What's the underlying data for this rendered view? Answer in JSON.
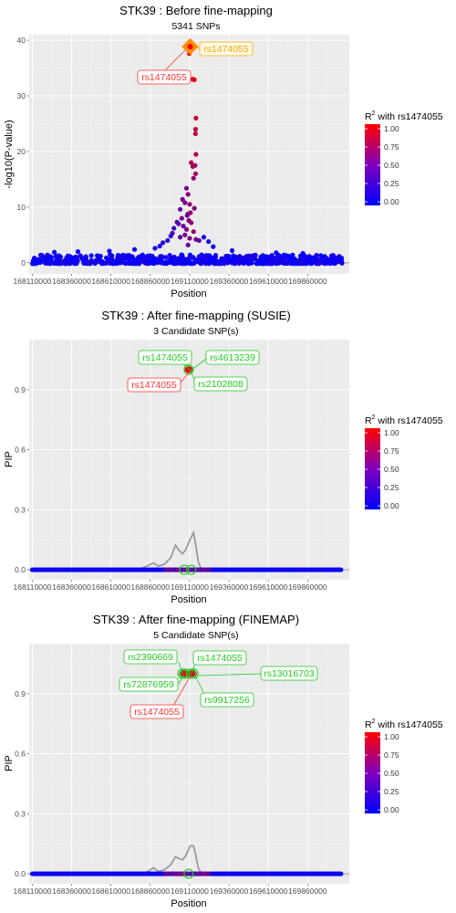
{
  "colors": {
    "low": "#0000ff",
    "high": "#ff0000",
    "panel": "#ebebeb",
    "candidate": "#22cc22",
    "lead": "#ff3333",
    "lead_label": "#ffaa00"
  },
  "chart_data": [
    {
      "type": "scatter",
      "title": "STK39 : Before fine-mapping",
      "subtitle": "5341 SNPs",
      "xlabel": "Position",
      "ylabel": "-log10(P-value)",
      "x_ticks": [
        "168110000",
        "168360000",
        "168610000",
        "168860000",
        "169110000",
        "169360000",
        "169610000",
        "169860000"
      ],
      "y_ticks": [
        "0",
        "10",
        "20",
        "30",
        "40"
      ],
      "ylim": [
        -2,
        41
      ],
      "xlim": [
        168090000,
        170125000
      ],
      "legend": {
        "title": "R² with rs1474055",
        "ticks": [
          "0.00",
          "0.25",
          "0.50",
          "0.75",
          "1.00"
        ]
      },
      "lead_snp": {
        "name": "rs1474055",
        "x": 169100000,
        "y": 38.5
      },
      "labels": [
        {
          "text": "rs1474055",
          "color": "lead_label"
        },
        {
          "text": "rs1474055",
          "color": "lead"
        }
      ],
      "peak_points": [
        {
          "x": 169095000,
          "y": 38.5,
          "r2": 1.0
        },
        {
          "x": 169108000,
          "y": 37.6,
          "r2": 0.95
        },
        {
          "x": 169130000,
          "y": 33.0,
          "r2": 0.9
        },
        {
          "x": 169140000,
          "y": 32.9,
          "r2": 0.9
        },
        {
          "x": 169150000,
          "y": 26.0,
          "r2": 0.78
        },
        {
          "x": 169148000,
          "y": 24.0,
          "r2": 0.75
        },
        {
          "x": 169147000,
          "y": 23.2,
          "r2": 0.72
        },
        {
          "x": 169150000,
          "y": 19.5,
          "r2": 0.7
        },
        {
          "x": 169148000,
          "y": 16.0,
          "r2": 0.65
        },
        {
          "x": 169120000,
          "y": 18.0,
          "r2": 0.7
        },
        {
          "x": 169130000,
          "y": 17.3,
          "r2": 0.68
        },
        {
          "x": 169145000,
          "y": 17.5,
          "r2": 0.6
        },
        {
          "x": 169135000,
          "y": 15.2,
          "r2": 0.55
        },
        {
          "x": 169090000,
          "y": 13.4,
          "r2": 0.45
        },
        {
          "x": 169100000,
          "y": 12.3,
          "r2": 0.5
        },
        {
          "x": 169065000,
          "y": 11.4,
          "r2": 0.45
        },
        {
          "x": 169080000,
          "y": 10.8,
          "r2": 0.5
        },
        {
          "x": 169110000,
          "y": 10.5,
          "r2": 0.55
        },
        {
          "x": 169140000,
          "y": 9.8,
          "r2": 0.5
        },
        {
          "x": 169050000,
          "y": 9.6,
          "r2": 0.4
        },
        {
          "x": 169115000,
          "y": 9.0,
          "r2": 0.6
        },
        {
          "x": 169100000,
          "y": 8.8,
          "r2": 0.55
        },
        {
          "x": 169095000,
          "y": 8.5,
          "r2": 0.4
        },
        {
          "x": 169060000,
          "y": 8.0,
          "r2": 0.45
        },
        {
          "x": 169105000,
          "y": 7.6,
          "r2": 0.5
        },
        {
          "x": 169120000,
          "y": 7.2,
          "r2": 0.55
        },
        {
          "x": 169030000,
          "y": 7.3,
          "r2": 0.3
        },
        {
          "x": 169040000,
          "y": 7.0,
          "r2": 0.35
        },
        {
          "x": 169070000,
          "y": 6.6,
          "r2": 0.4
        },
        {
          "x": 169010000,
          "y": 6.2,
          "r2": 0.25
        },
        {
          "x": 169090000,
          "y": 6.0,
          "r2": 0.5
        },
        {
          "x": 169135000,
          "y": 5.6,
          "r2": 0.55
        },
        {
          "x": 169000000,
          "y": 5.3,
          "r2": 0.3
        },
        {
          "x": 169080000,
          "y": 5.0,
          "r2": 0.45
        },
        {
          "x": 168990000,
          "y": 4.8,
          "r2": 0.2
        },
        {
          "x": 169050000,
          "y": 4.6,
          "r2": 0.35
        },
        {
          "x": 169110000,
          "y": 4.4,
          "r2": 0.5
        },
        {
          "x": 168970000,
          "y": 4.0,
          "r2": 0.15
        },
        {
          "x": 169150000,
          "y": 4.2,
          "r2": 0.45
        },
        {
          "x": 169170000,
          "y": 4.0,
          "r2": 0.35
        },
        {
          "x": 169200000,
          "y": 4.6,
          "r2": 0.1
        },
        {
          "x": 168940000,
          "y": 3.6,
          "r2": 0.15
        },
        {
          "x": 169230000,
          "y": 3.8,
          "r2": 0.1
        },
        {
          "x": 168920000,
          "y": 3.0,
          "r2": 0.1
        },
        {
          "x": 169100000,
          "y": 3.2,
          "r2": 0.4
        },
        {
          "x": 169260000,
          "y": 2.9,
          "r2": 0.08
        },
        {
          "x": 168890000,
          "y": 2.6,
          "r2": 0.08
        },
        {
          "x": 168760000,
          "y": 2.4,
          "r2": 0.05
        },
        {
          "x": 169380000,
          "y": 2.2,
          "r2": 0.05
        },
        {
          "x": 168400000,
          "y": 2.0,
          "r2": 0.03
        },
        {
          "x": 169660000,
          "y": 1.8,
          "r2": 0.03
        },
        {
          "x": 168250000,
          "y": 1.9,
          "r2": 0.03
        },
        {
          "x": 169830000,
          "y": 1.7,
          "r2": 0.03
        },
        {
          "x": 168600000,
          "y": 2.1,
          "r2": 0.04
        }
      ],
      "background_points": {
        "count": 700,
        "xrange": [
          168110000,
          170080000
        ],
        "ymax": 1.6
      }
    },
    {
      "type": "scatter",
      "title": "STK39 : After fine-mapping (SUSIE)",
      "subtitle": "3 Candidate SNP(s)",
      "xlabel": "Position",
      "ylabel": "PIP",
      "x_ticks": [
        "168110000",
        "168360000",
        "168610000",
        "168860000",
        "169110000",
        "169360000",
        "169610000",
        "169860000"
      ],
      "y_ticks": [
        "0.0",
        "0.3",
        "0.6",
        "0.9"
      ],
      "ylim": [
        -0.05,
        1.15
      ],
      "xlim": [
        168090000,
        170125000
      ],
      "legend": {
        "title": "R² with rs1474055",
        "ticks": [
          "0.00",
          "0.25",
          "0.50",
          "0.75",
          "1.00"
        ]
      },
      "top_points": [
        {
          "x": 169100000,
          "y": 1.0,
          "r2": 1.0
        },
        {
          "x": 169108000,
          "y": 1.0,
          "r2": 0.9
        }
      ],
      "candidate_rings": [
        {
          "x": 169104000,
          "y": 1.0
        },
        {
          "x": 169075000,
          "y": 0.0
        },
        {
          "x": 169120000,
          "y": 0.0
        }
      ],
      "density_line": [
        [
          168110000,
          0.0
        ],
        [
          168300000,
          0.002
        ],
        [
          168360000,
          0.006
        ],
        [
          168420000,
          0.002
        ],
        [
          168620000,
          0.0
        ],
        [
          168780000,
          0.0
        ],
        [
          168840000,
          0.018
        ],
        [
          168880000,
          0.034
        ],
        [
          168910000,
          0.018
        ],
        [
          168950000,
          0.028
        ],
        [
          168990000,
          0.06
        ],
        [
          169020000,
          0.123
        ],
        [
          169045000,
          0.095
        ],
        [
          169065000,
          0.08
        ],
        [
          169085000,
          0.1
        ],
        [
          169115000,
          0.155
        ],
        [
          169135000,
          0.185
        ],
        [
          169150000,
          0.12
        ],
        [
          169165000,
          0.04
        ],
        [
          169185000,
          0.0
        ],
        [
          170080000,
          0.0
        ]
      ],
      "labels": [
        {
          "text": "rs1474055",
          "color": "candidate"
        },
        {
          "text": "rs4613239",
          "color": "candidate"
        },
        {
          "text": "rs1474055",
          "color": "lead"
        },
        {
          "text": "rs2102808",
          "color": "candidate"
        }
      ]
    },
    {
      "type": "scatter",
      "title": "STK39 : After fine-mapping (FINEMAP)",
      "subtitle": "5 Candidate SNP(s)",
      "xlabel": "Position",
      "ylabel": "PIP",
      "x_ticks": [
        "168110000",
        "168360000",
        "168610000",
        "168860000",
        "169110000",
        "169360000",
        "169610000",
        "169860000"
      ],
      "y_ticks": [
        "0.0",
        "0.3",
        "0.6",
        "0.9"
      ],
      "ylim": [
        -0.05,
        1.15
      ],
      "xlim": [
        168090000,
        170125000
      ],
      "legend": {
        "title": "R² with rs1474055",
        "ticks": [
          "0.00",
          "0.25",
          "0.50",
          "0.75",
          "1.00"
        ]
      },
      "top_points": [
        {
          "x": 169065000,
          "y": 1.0,
          "r2": 0.8
        },
        {
          "x": 169080000,
          "y": 1.0,
          "r2": 0.9
        },
        {
          "x": 169100000,
          "y": 1.0,
          "r2": 1.0
        },
        {
          "x": 169118000,
          "y": 1.0,
          "r2": 0.9
        },
        {
          "x": 169135000,
          "y": 1.0,
          "r2": 0.85
        }
      ],
      "candidate_rings": [
        {
          "x": 169065000,
          "y": 1.0
        },
        {
          "x": 169080000,
          "y": 1.0
        },
        {
          "x": 169118000,
          "y": 1.0
        },
        {
          "x": 169135000,
          "y": 1.0
        },
        {
          "x": 169104000,
          "y": 0.0
        }
      ],
      "density_line": [
        [
          168110000,
          0.0
        ],
        [
          168300000,
          0.002
        ],
        [
          168360000,
          0.008
        ],
        [
          168420000,
          0.002
        ],
        [
          168620000,
          0.0
        ],
        [
          168780000,
          0.0
        ],
        [
          168840000,
          0.01
        ],
        [
          168880000,
          0.03
        ],
        [
          168910000,
          0.012
        ],
        [
          168950000,
          0.02
        ],
        [
          168990000,
          0.045
        ],
        [
          169020000,
          0.085
        ],
        [
          169045000,
          0.075
        ],
        [
          169065000,
          0.07
        ],
        [
          169085000,
          0.09
        ],
        [
          169115000,
          0.14
        ],
        [
          169135000,
          0.14
        ],
        [
          169150000,
          0.09
        ],
        [
          169165000,
          0.03
        ],
        [
          169185000,
          0.0
        ],
        [
          170080000,
          0.0
        ]
      ],
      "labels": [
        {
          "text": "rs2390669",
          "color": "candidate"
        },
        {
          "text": "rs1474055",
          "color": "candidate"
        },
        {
          "text": "rs13016703",
          "color": "candidate"
        },
        {
          "text": "rs72876959",
          "color": "candidate"
        },
        {
          "text": "rs9917256",
          "color": "candidate"
        },
        {
          "text": "rs1474055",
          "color": "lead"
        }
      ]
    }
  ]
}
